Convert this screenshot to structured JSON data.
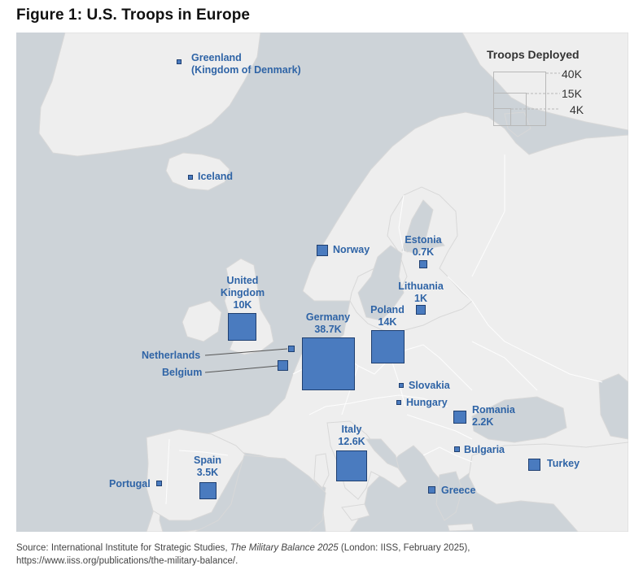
{
  "title": "Figure 1: U.S. Troops in Europe",
  "legend": {
    "title": "Troops Deployed",
    "values": [
      "40K",
      "15K",
      "4K"
    ]
  },
  "countries": [
    {
      "name": "Greenland",
      "sub": "(Kingdom of Denmark)",
      "troops": ""
    },
    {
      "name": "Iceland",
      "troops": ""
    },
    {
      "name": "Norway",
      "troops": ""
    },
    {
      "name": "Estonia",
      "troops": "0.7K"
    },
    {
      "name": "Lithuania",
      "troops": "1K"
    },
    {
      "name": "United Kingdom",
      "line1": "United",
      "line2": "Kingdom",
      "troops": "10K"
    },
    {
      "name": "Germany",
      "troops": "38.7K"
    },
    {
      "name": "Poland",
      "troops": "14K"
    },
    {
      "name": "Netherlands",
      "troops": ""
    },
    {
      "name": "Belgium",
      "troops": ""
    },
    {
      "name": "Slovakia",
      "troops": ""
    },
    {
      "name": "Hungary",
      "troops": ""
    },
    {
      "name": "Romania",
      "troops": "2.2K"
    },
    {
      "name": "Italy",
      "troops": "12.6K"
    },
    {
      "name": "Bulgaria",
      "troops": ""
    },
    {
      "name": "Spain",
      "troops": "3.5K"
    },
    {
      "name": "Portugal",
      "troops": ""
    },
    {
      "name": "Turkey",
      "troops": ""
    },
    {
      "name": "Greece",
      "troops": ""
    }
  ],
  "source": {
    "prefix": "Source: International Institute for Strategic Studies, ",
    "publication": "The Military Balance 2025",
    "suffix": " (London: IISS, February 2025), https://www.iiss.org/publications/the-military-balance/."
  },
  "colors": {
    "sea": "#cdd3d8",
    "land": "#eeeeee",
    "marker": "#4a7bbf",
    "label": "#2f64a6"
  }
}
